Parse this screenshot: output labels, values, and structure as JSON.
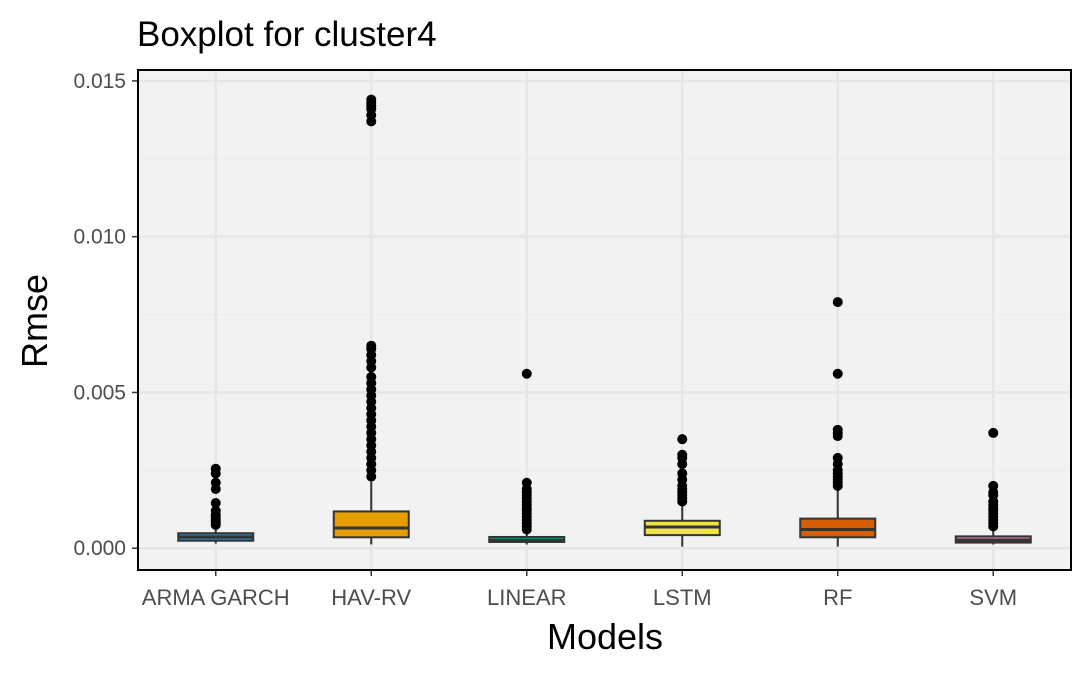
{
  "chart_data": {
    "type": "boxplot",
    "title": "Boxplot for cluster4",
    "xlabel": "Models",
    "ylabel": "Rmse",
    "ylim": [
      -0.0007,
      0.01535
    ],
    "yticks": [
      "0.000",
      "0.005",
      "0.010",
      "0.015"
    ],
    "ytick_values": [
      0,
      0.005,
      0.01,
      0.015
    ],
    "grid": true,
    "colors": {
      "panel": "#f2f2f2",
      "grid_major": "#e6e6e6",
      "grid_minor": "#ececec",
      "border": "#000000",
      "box_stroke": "#333333",
      "outlier": "#000000"
    },
    "categories": [
      "ARMA GARCH",
      "HAV-RV",
      "LINEAR",
      "LSTM",
      "RF",
      "SVM"
    ],
    "boxes": [
      {
        "name": "ARMA GARCH",
        "fill": "#2c7fb8",
        "min": 0.00015,
        "q1": 0.00024,
        "median": 0.00036,
        "q3": 0.00048,
        "max": 0.00065,
        "outliers": [
          0.00075,
          0.00082,
          0.00088,
          0.00094,
          0.00102,
          0.00108,
          0.0012,
          0.00145,
          0.0019,
          0.0021,
          0.0024,
          0.00255
        ]
      },
      {
        "name": "HAV-RV",
        "fill": "#e69f00",
        "min": 0.00012,
        "q1": 0.00035,
        "median": 0.00065,
        "q3": 0.00118,
        "max": 0.00225,
        "outliers": [
          0.0023,
          0.0025,
          0.0027,
          0.0029,
          0.0031,
          0.0033,
          0.0035,
          0.0037,
          0.0039,
          0.0041,
          0.0043,
          0.0045,
          0.0047,
          0.0049,
          0.0051,
          0.0053,
          0.0055,
          0.0058,
          0.006,
          0.0062,
          0.0064,
          0.0065,
          0.0137,
          0.0139,
          0.0141,
          0.0142,
          0.0143,
          0.0144
        ]
      },
      {
        "name": "LINEAR",
        "fill": "#20b2aa",
        "min": 0.00012,
        "q1": 0.0002,
        "median": 0.00026,
        "q3": 0.00036,
        "max": 0.00055,
        "outliers": [
          0.0006,
          0.0007,
          0.0008,
          0.0009,
          0.001,
          0.0011,
          0.0012,
          0.0013,
          0.0014,
          0.0015,
          0.0016,
          0.0017,
          0.0018,
          0.0019,
          0.0021,
          0.0056
        ]
      },
      {
        "name": "LSTM",
        "fill": "#f0e442",
        "min": 5e-05,
        "q1": 0.00042,
        "median": 0.00068,
        "q3": 0.00088,
        "max": 0.00145,
        "outliers": [
          0.0015,
          0.0016,
          0.0017,
          0.0018,
          0.0019,
          0.002,
          0.0022,
          0.0024,
          0.0027,
          0.0029,
          0.003,
          0.0035
        ]
      },
      {
        "name": "RF",
        "fill": "#d55e00",
        "min": 5e-05,
        "q1": 0.00035,
        "median": 0.0006,
        "q3": 0.00095,
        "max": 0.0019,
        "outliers": [
          0.002,
          0.0021,
          0.0022,
          0.0023,
          0.0024,
          0.0025,
          0.0027,
          0.0029,
          0.0036,
          0.0037,
          0.0038,
          0.0056,
          0.0079
        ]
      },
      {
        "name": "SVM",
        "fill": "#cc79a7",
        "min": 0.00012,
        "q1": 0.00018,
        "median": 0.00026,
        "q3": 0.00038,
        "max": 0.00065,
        "outliers": [
          0.0007,
          0.0008,
          0.0009,
          0.001,
          0.0011,
          0.0012,
          0.0013,
          0.0014,
          0.0015,
          0.0017,
          0.0018,
          0.002,
          0.0037
        ]
      }
    ]
  }
}
